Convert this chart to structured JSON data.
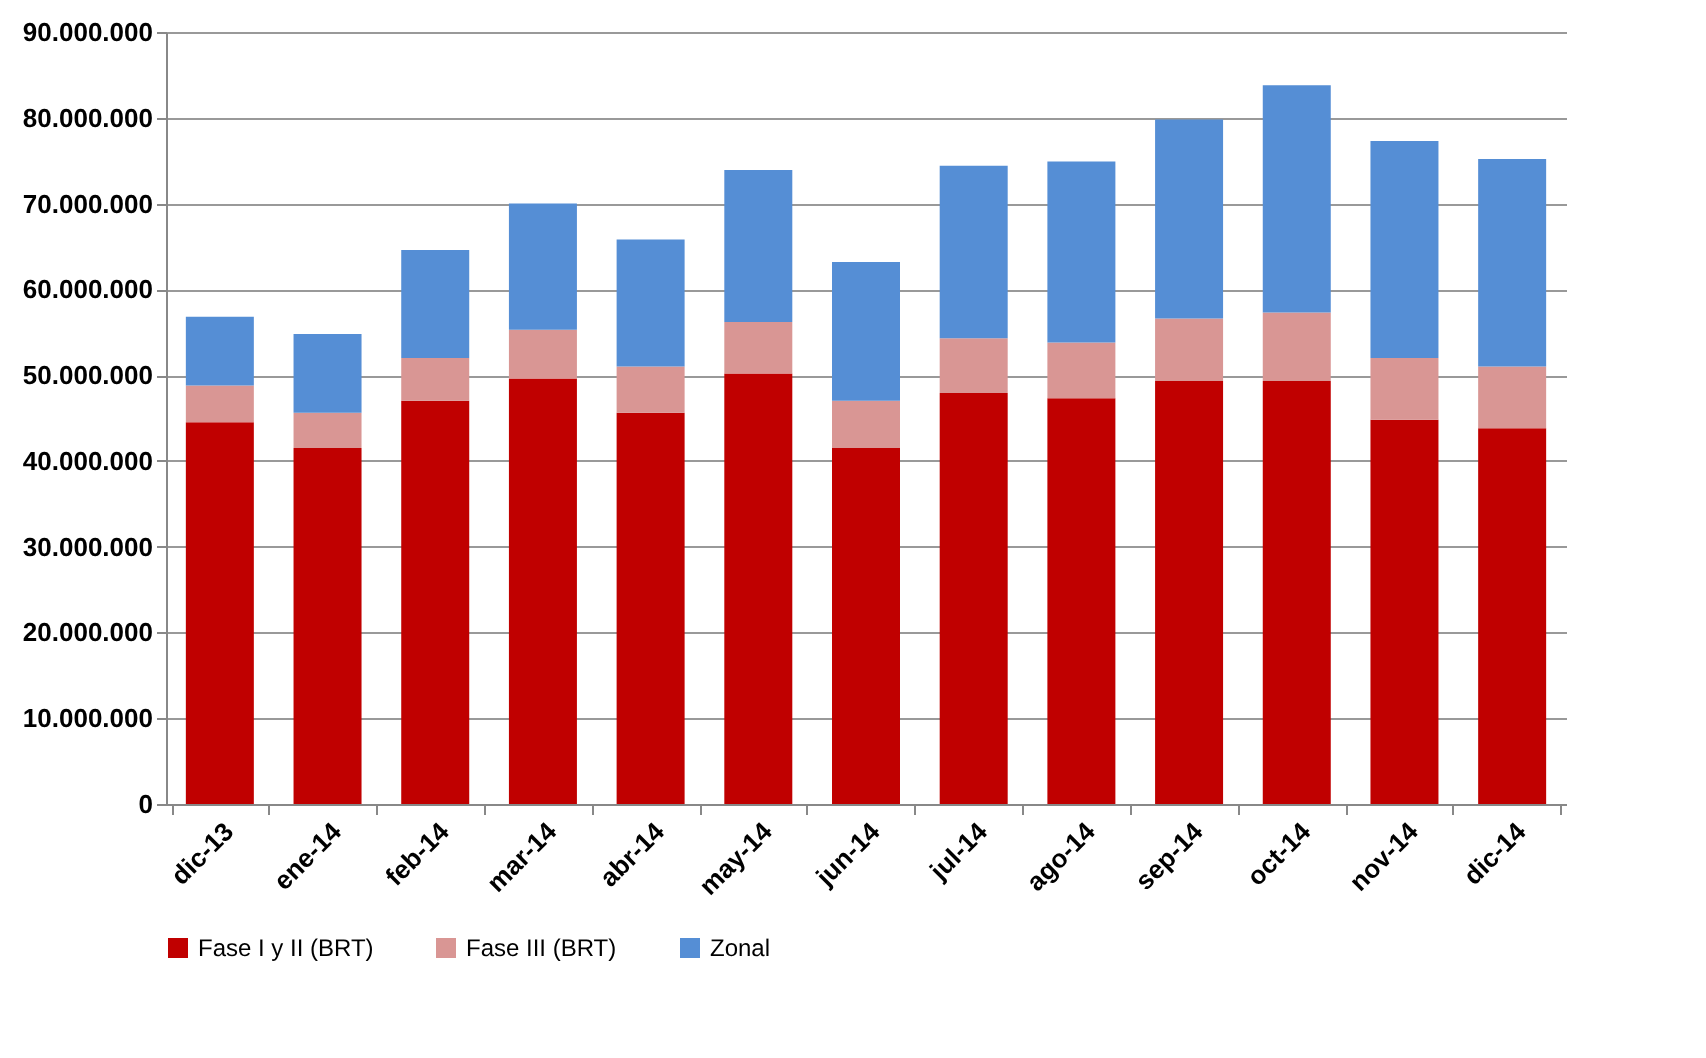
{
  "chart_data": {
    "type": "bar",
    "stacked": true,
    "categories": [
      "dic-13",
      "ene-14",
      "feb-14",
      "mar-14",
      "abr-14",
      "may-14",
      "jun-14",
      "jul-14",
      "ago-14",
      "sep-14",
      "oct-14",
      "nov-14",
      "dic-14"
    ],
    "series": [
      {
        "name": "Fase I y II (BRT)",
        "color": "#c00000",
        "values": [
          44500000,
          41500000,
          47000000,
          49600000,
          45600000,
          50200000,
          41500000,
          47900000,
          47300000,
          49300000,
          49300000,
          44800000,
          43800000
        ]
      },
      {
        "name": "Fase III (BRT)",
        "color": "#d99694",
        "values": [
          4300000,
          4100000,
          5000000,
          5700000,
          5400000,
          6000000,
          5500000,
          6400000,
          6500000,
          7300000,
          8000000,
          7200000,
          7200000
        ]
      },
      {
        "name": "Zonal",
        "color": "#558ed5",
        "values": [
          8000000,
          9200000,
          12600000,
          14700000,
          14800000,
          17700000,
          16200000,
          20100000,
          21100000,
          23200000,
          26500000,
          25300000,
          24200000
        ]
      }
    ],
    "ylim": [
      0,
      90000000
    ],
    "yticks": [
      {
        "value": 0,
        "label": "0"
      },
      {
        "value": 10000000,
        "label": "10.000.000"
      },
      {
        "value": 20000000,
        "label": "20.000.000"
      },
      {
        "value": 30000000,
        "label": "30.000.000"
      },
      {
        "value": 40000000,
        "label": "40.000.000"
      },
      {
        "value": 50000000,
        "label": "50.000.000"
      },
      {
        "value": 60000000,
        "label": "60.000.000"
      },
      {
        "value": 70000000,
        "label": "70.000.000"
      },
      {
        "value": 80000000,
        "label": "80.000.000"
      },
      {
        "value": 90000000,
        "label": "90.000.000"
      }
    ],
    "grid": "y",
    "legend": "bottom"
  }
}
